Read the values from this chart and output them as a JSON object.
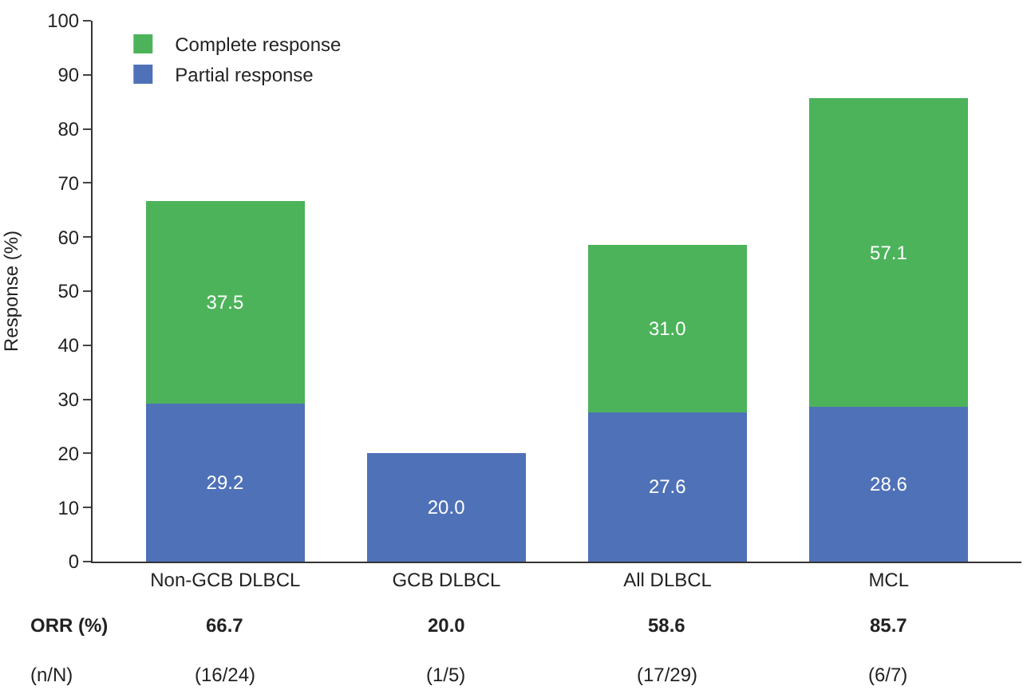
{
  "chart_data": {
    "type": "bar",
    "stacked": true,
    "ylabel": "Response (%)",
    "categories": [
      "Non-GCB DLBCL",
      "GCB DLBCL",
      "All DLBCL",
      "MCL"
    ],
    "series": [
      {
        "name": "Partial response",
        "color": "#4f71b8",
        "values": [
          29.2,
          20.0,
          27.6,
          28.6
        ],
        "value_labels": [
          "29.2",
          "20.0",
          "27.6",
          "28.6"
        ]
      },
      {
        "name": "Complete response",
        "color": "#4cb35a",
        "values": [
          37.5,
          null,
          31.0,
          57.1
        ],
        "value_labels": [
          "37.5",
          null,
          "31.0",
          "57.1"
        ]
      }
    ],
    "totals": [
      "66.7",
      "20.0",
      "58.6",
      "85.7"
    ],
    "annotations": [
      "ORR (%)",
      "(n/N)",
      "(16/24)",
      "(1/5)",
      "(17/29)",
      "(6/7)"
    ],
    "ylim": [
      0,
      100
    ],
    "yticks": [
      0,
      10,
      20,
      30,
      40,
      50,
      60,
      70,
      80,
      90,
      100
    ],
    "legend": "top left"
  }
}
